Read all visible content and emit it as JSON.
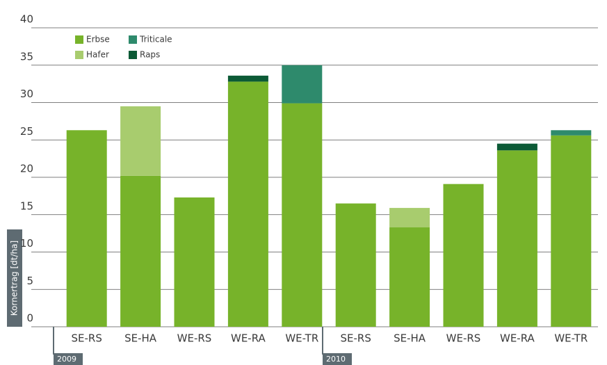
{
  "chart_data": {
    "type": "stacked-bar",
    "ylabel": "Kornertrag [dt/ha]",
    "categories": [
      "SE-RS",
      "SE-HA",
      "WE-RS",
      "WE-RA",
      "WE-TR",
      "SE-RS",
      "SE-HA",
      "WE-RS",
      "WE-RA",
      "WE-TR"
    ],
    "groups": [
      "2009",
      "2010"
    ],
    "series": [
      {
        "name": "Erbse",
        "color": "#77b32a",
        "values": [
          26.3,
          20.2,
          17.3,
          32.8,
          29.9,
          16.5,
          13.3,
          19.1,
          23.6,
          25.6
        ]
      },
      {
        "name": "Hafer",
        "color": "#a8cc6e",
        "values": [
          null,
          9.3,
          null,
          null,
          null,
          null,
          2.6,
          null,
          null,
          null
        ]
      },
      {
        "name": "Raps",
        "color": "#0c5a36",
        "values": [
          null,
          null,
          null,
          0.8,
          null,
          null,
          null,
          null,
          0.9,
          null
        ]
      },
      {
        "name": "Triticale",
        "color": "#2e8a6c",
        "values": [
          null,
          null,
          null,
          null,
          5.1,
          null,
          null,
          null,
          null,
          0.7
        ]
      }
    ],
    "ylim": [
      0,
      40
    ],
    "yticks": [
      0,
      5,
      10,
      15,
      20,
      25,
      30,
      35,
      40
    ],
    "grid": true
  }
}
